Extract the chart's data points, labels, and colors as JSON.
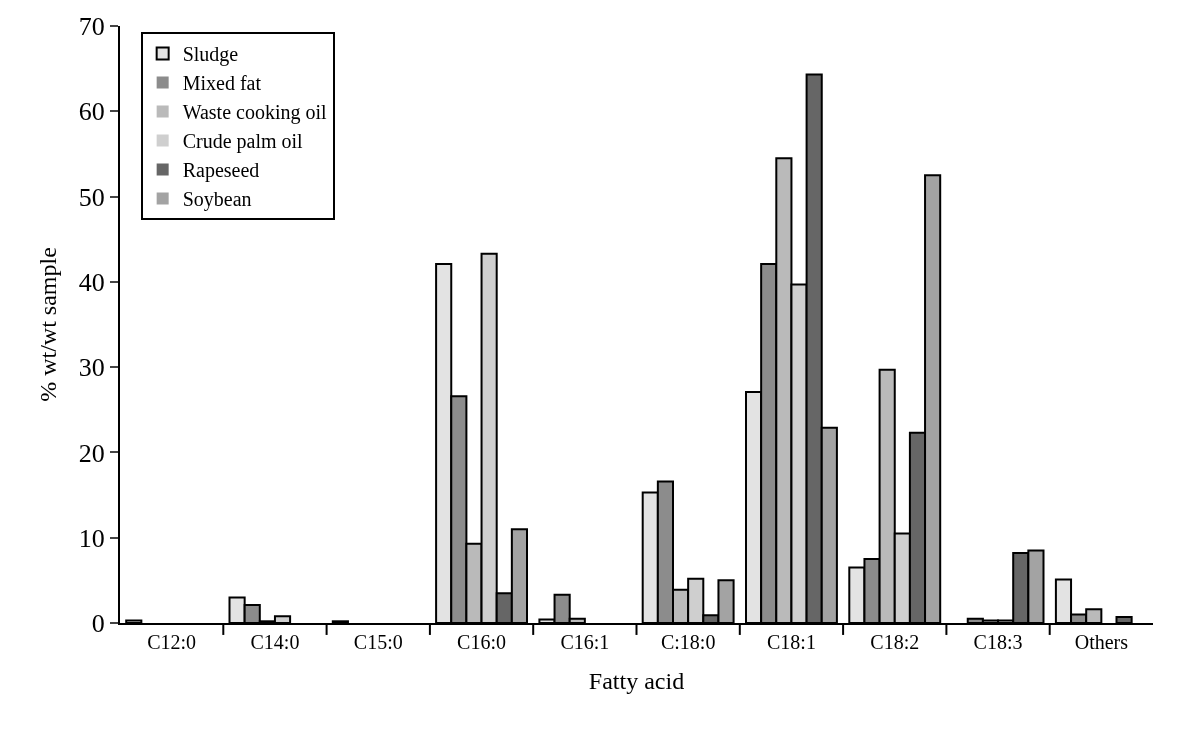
{
  "chart_data": {
    "type": "bar",
    "xlabel": "Fatty acid",
    "ylabel": "% wt/wt sample",
    "categories": [
      "C12:0",
      "C14:0",
      "C15:0",
      "C16:0",
      "C16:1",
      "C:18:0",
      "C18:1",
      "C18:2",
      "C18:3",
      "Others"
    ],
    "series": [
      {
        "name": "Sludge",
        "color": "#e3e3e3",
        "values": [
          0.3,
          3.0,
          0.2,
          42.1,
          0.4,
          15.3,
          27.1,
          6.5,
          0,
          5.1
        ]
      },
      {
        "name": "Mixed fat",
        "color": "#8c8c8c",
        "values": [
          0,
          2.1,
          0,
          26.6,
          3.3,
          16.6,
          42.1,
          7.5,
          0.5,
          1.0
        ]
      },
      {
        "name": "Waste cooking oil",
        "color": "#bababa",
        "values": [
          0,
          0.2,
          0,
          9.3,
          0.5,
          3.9,
          54.5,
          29.7,
          0.3,
          1.6
        ]
      },
      {
        "name": "Crude palm oil",
        "color": "#cfcfcf",
        "values": [
          0,
          0.8,
          0,
          43.3,
          0,
          5.2,
          39.7,
          10.5,
          0.3,
          0
        ]
      },
      {
        "name": "Rapeseed",
        "color": "#666666",
        "values": [
          0,
          0,
          0,
          3.5,
          0,
          0.9,
          64.3,
          22.3,
          8.2,
          0.7
        ]
      },
      {
        "name": "Soybean",
        "color": "#a3a3a3",
        "values": [
          0,
          0,
          0,
          11.0,
          0,
          5.0,
          22.9,
          52.5,
          8.5,
          0
        ]
      }
    ],
    "ylim": [
      0,
      70
    ],
    "yticks": [
      0,
      10,
      20,
      30,
      40,
      50,
      60,
      70
    ],
    "legend": "top left"
  }
}
